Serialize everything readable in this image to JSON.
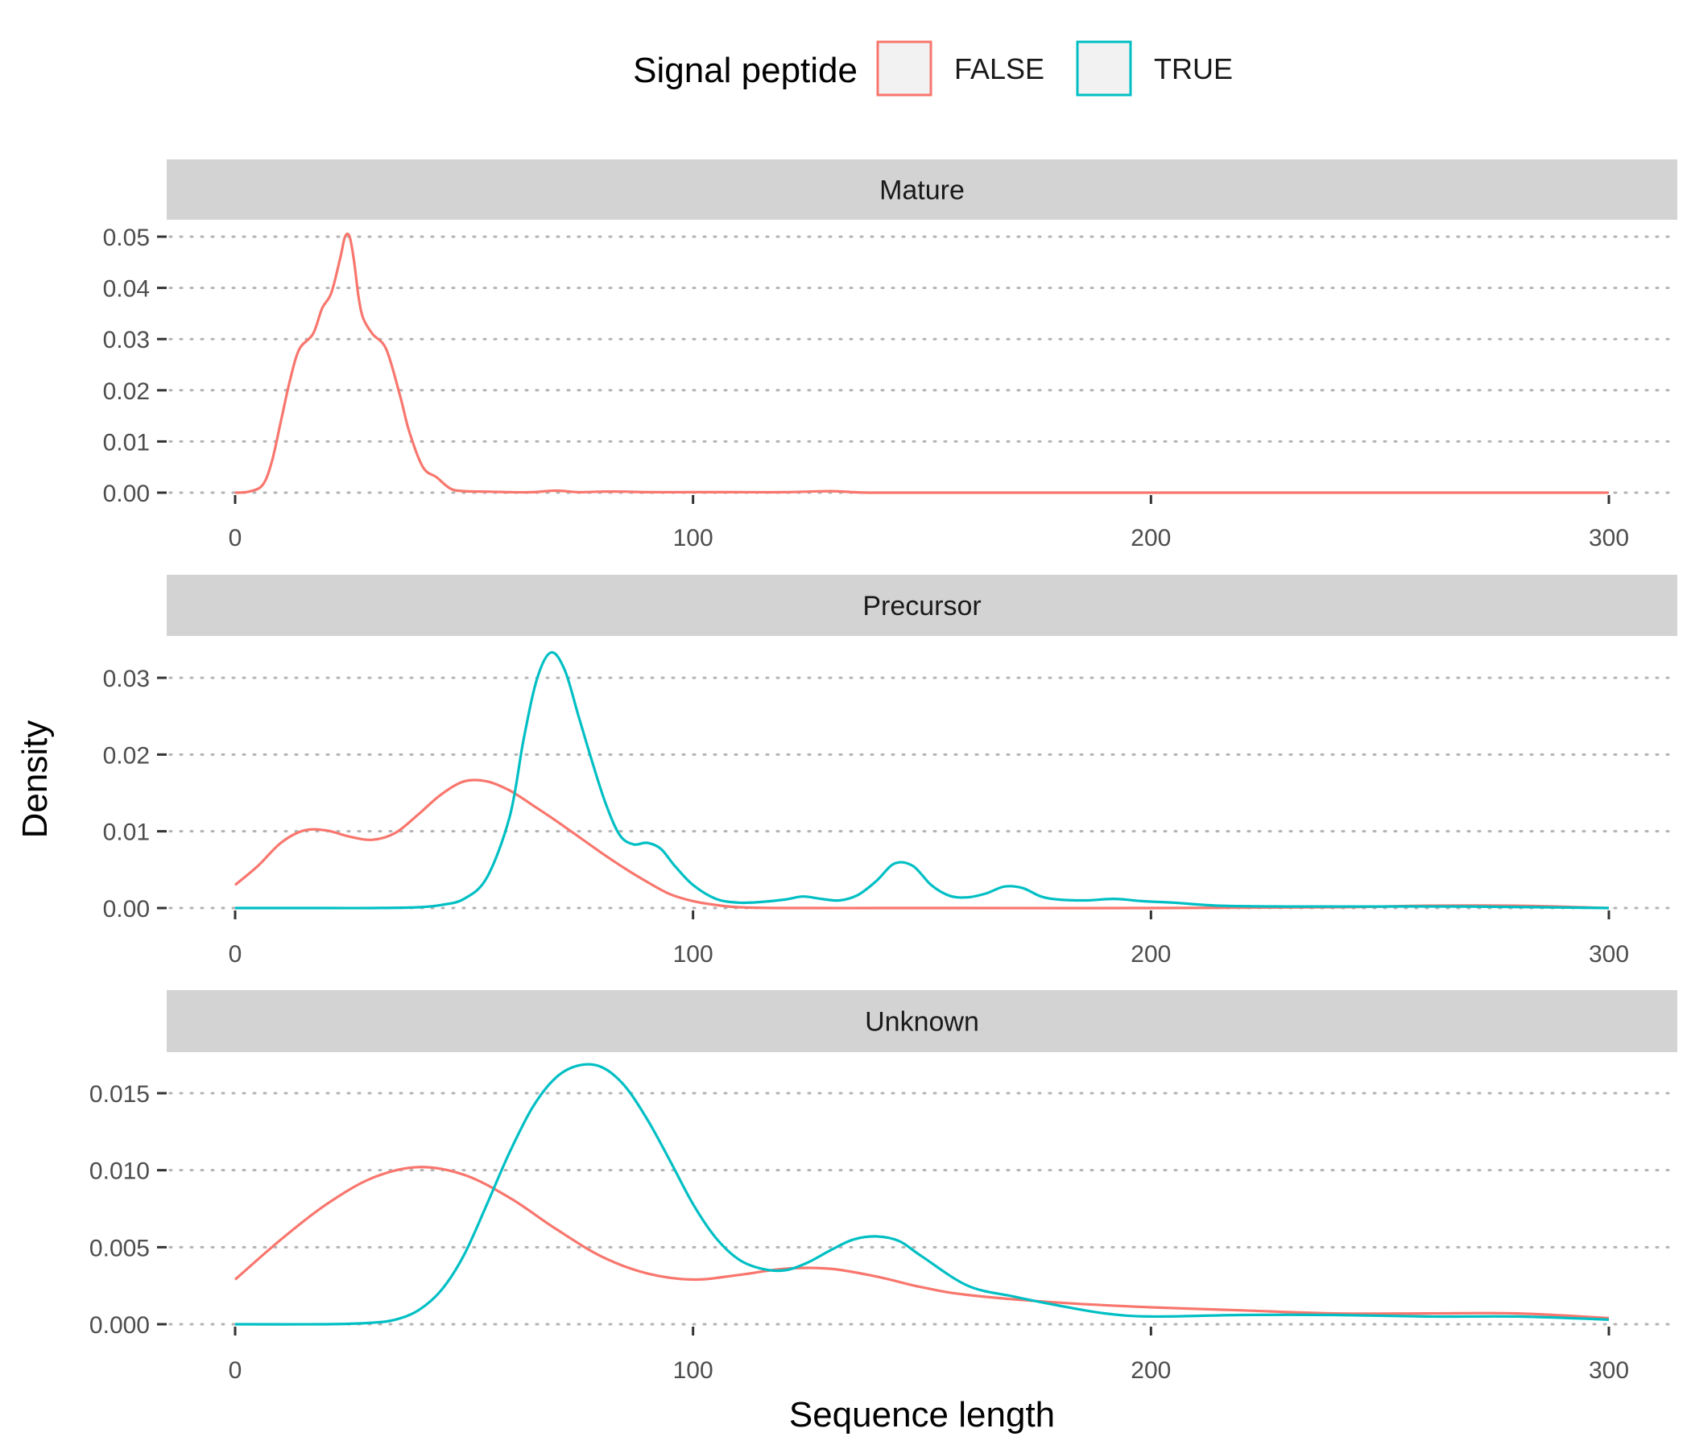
{
  "legend": {
    "title": "Signal peptide",
    "items": [
      {
        "label": "FALSE",
        "color": "#F8766D"
      },
      {
        "label": "TRUE",
        "color": "#00BFC4"
      }
    ]
  },
  "chart_data": {
    "type": "line",
    "subtype": "density-facets",
    "xlabel": "Sequence length",
    "ylabel": "Density",
    "xlim": [
      0,
      300
    ],
    "x_ticks": [
      0,
      100,
      200,
      300
    ],
    "grid": "horizontal-dotted",
    "legend_position": "top",
    "facets": [
      {
        "name": "Mature",
        "ylim": [
          0,
          0.05
        ],
        "y_ticks": [
          0,
          0.01,
          0.02,
          0.03,
          0.04,
          0.05
        ],
        "y_tick_labels": [
          "0.00",
          "0.01",
          "0.02",
          "0.03",
          "0.04",
          "0.05"
        ],
        "series": [
          {
            "name": "FALSE",
            "x": [
              0,
              3,
              6,
              8,
              10,
              12,
              14,
              17,
              19,
              21,
              23,
              24,
              25,
              26,
              27,
              28,
              30,
              33,
              36,
              38,
              41,
              44,
              47,
              50,
              55,
              60,
              65,
              70,
              75,
              80,
              85,
              90,
              100,
              110,
              120,
              130,
              135,
              140,
              160,
              200,
              250,
              300
            ],
            "y": [
              0,
              0.0002,
              0.0015,
              0.006,
              0.014,
              0.022,
              0.028,
              0.031,
              0.036,
              0.039,
              0.046,
              0.05,
              0.05,
              0.045,
              0.038,
              0.034,
              0.031,
              0.028,
              0.019,
              0.012,
              0.005,
              0.003,
              0.0008,
              0.0003,
              0.0002,
              0.0001,
              0.0001,
              0.0004,
              0.0001,
              0.0002,
              0.0002,
              0.0001,
              0.0001,
              0.0001,
              0.0001,
              0.0003,
              0.0001,
              0,
              0,
              0,
              0,
              0
            ]
          }
        ]
      },
      {
        "name": "Precursor",
        "ylim": [
          0,
          0.033
        ],
        "y_ticks": [
          0,
          0.01,
          0.02,
          0.03
        ],
        "y_tick_labels": [
          "0.00",
          "0.01",
          "0.02",
          "0.03"
        ],
        "series": [
          {
            "name": "FALSE",
            "x": [
              0,
              5,
              10,
              15,
              20,
              25,
              30,
              35,
              40,
              45,
              50,
              55,
              60,
              65,
              70,
              75,
              80,
              85,
              90,
              95,
              100,
              105,
              110,
              120,
              140,
              160,
              200,
              240,
              260,
              280,
              300
            ],
            "y": [
              0.003,
              0.0055,
              0.0085,
              0.0101,
              0.0101,
              0.0093,
              0.0089,
              0.0098,
              0.0122,
              0.0148,
              0.0165,
              0.0165,
              0.0153,
              0.0134,
              0.0114,
              0.0093,
              0.0072,
              0.0052,
              0.0034,
              0.0018,
              0.0009,
              0.0004,
              0.0001,
              0,
              0,
              0,
              0,
              0.0001,
              0.0003,
              0.0003,
              0
            ]
          },
          {
            "name": "TRUE",
            "x": [
              0,
              20,
              30,
              40,
              45,
              50,
              55,
              60,
              63,
              66,
              69,
              72,
              75,
              78,
              81,
              84,
              87,
              90,
              93,
              96,
              100,
              105,
              110,
              115,
              120,
              124,
              128,
              132,
              136,
              140,
              144,
              148,
              152,
              156,
              160,
              164,
              168,
              172,
              176,
              180,
              186,
              192,
              198,
              205,
              215,
              230,
              250,
              270,
              300
            ],
            "y": [
              0,
              0,
              0,
              0.0001,
              0.0004,
              0.0012,
              0.004,
              0.012,
              0.022,
              0.03,
              0.0333,
              0.031,
              0.025,
              0.019,
              0.0135,
              0.0095,
              0.0083,
              0.0085,
              0.0077,
              0.0055,
              0.003,
              0.0012,
              0.0007,
              0.0008,
              0.0011,
              0.0015,
              0.0012,
              0.001,
              0.0017,
              0.0035,
              0.0058,
              0.0055,
              0.003,
              0.0016,
              0.0014,
              0.0019,
              0.0028,
              0.0026,
              0.0015,
              0.0011,
              0.001,
              0.0012,
              0.0009,
              0.0007,
              0.0003,
              0.0002,
              0.0002,
              0.0002,
              0
            ]
          }
        ]
      },
      {
        "name": "Unknown",
        "ylim": [
          0,
          0.0165
        ],
        "y_ticks": [
          0,
          0.005,
          0.01,
          0.015
        ],
        "y_tick_labels": [
          "0.000",
          "0.005",
          "0.010",
          "0.015"
        ],
        "series": [
          {
            "name": "FALSE",
            "x": [
              0,
              10,
              20,
              30,
              40,
              50,
              60,
              70,
              80,
              90,
              100,
              110,
              120,
              130,
              140,
              150,
              160,
              180,
              200,
              220,
              240,
              260,
              280,
              300
            ],
            "y": [
              0.0029,
              0.0055,
              0.0078,
              0.0095,
              0.0102,
              0.0097,
              0.0082,
              0.0062,
              0.0044,
              0.0033,
              0.0029,
              0.0032,
              0.0036,
              0.0036,
              0.0031,
              0.0024,
              0.0019,
              0.0014,
              0.0011,
              0.0009,
              0.0007,
              0.0007,
              0.0007,
              0.0004
            ]
          },
          {
            "name": "TRUE",
            "x": [
              0,
              20,
              30,
              35,
              40,
              45,
              50,
              55,
              60,
              65,
              70,
              75,
              80,
              85,
              90,
              95,
              100,
              105,
              110,
              115,
              120,
              125,
              130,
              135,
              140,
              145,
              150,
              160,
              170,
              180,
              190,
              200,
              220,
              240,
              260,
              280,
              300
            ],
            "y": [
              0,
              0,
              0.0001,
              0.0003,
              0.0009,
              0.0022,
              0.0045,
              0.0078,
              0.0112,
              0.0141,
              0.016,
              0.0168,
              0.0167,
              0.0155,
              0.0133,
              0.0106,
              0.0078,
              0.0056,
              0.0042,
              0.0036,
              0.0035,
              0.004,
              0.0048,
              0.0055,
              0.0057,
              0.0054,
              0.0044,
              0.0025,
              0.0018,
              0.0012,
              0.0007,
              0.0005,
              0.0006,
              0.0006,
              0.0005,
              0.0005,
              0.0003
            ]
          }
        ]
      }
    ]
  }
}
